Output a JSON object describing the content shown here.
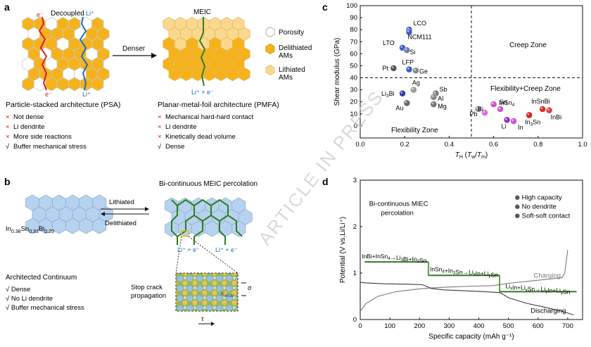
{
  "panel_labels": {
    "a": "a",
    "b": "b",
    "c": "c",
    "d": "d"
  },
  "colors": {
    "delithiated": "#f5b21b",
    "lithiated": "#fad98f",
    "porosity": "#ffffff",
    "blue_hex": "#b7d2ee",
    "green": "#2e7d1e",
    "red": "#d62020",
    "cross": "#d62020"
  },
  "panel_a": {
    "decoupled": "Decoupled",
    "e_minus": "e⁻",
    "li_plus": "Li⁺",
    "denser": "Denser",
    "meic": "MEIC",
    "li_e": "Li⁺ + e⁻",
    "legend": [
      {
        "label": "Porosity"
      },
      {
        "label": "Delithiated AMs"
      },
      {
        "label": "Lithiated AMs"
      }
    ],
    "psa_title": "Particle-stacked architecture (PSA)",
    "psa_list": [
      {
        "mark": "×",
        "text": "Not dense"
      },
      {
        "mark": "×",
        "text": "Li dendrite"
      },
      {
        "mark": "×",
        "text": "More side reactions"
      },
      {
        "mark": "√",
        "text": "Buffer mechanical stress"
      }
    ],
    "pmfa_title": "Planar-metal-foil architecture (PMFA)",
    "pmfa_list": [
      {
        "mark": "×",
        "text": "Mechanical hard-hard contact"
      },
      {
        "mark": "×",
        "text": "Li dendrite"
      },
      {
        "mark": "×",
        "text": "Kinetically dead volume"
      },
      {
        "mark": "√",
        "text": "Dense"
      }
    ]
  },
  "panel_b": {
    "title": "Bi-continuous MEIC percolation",
    "lithiated": "Lithiated",
    "delithiated": "Delithiated",
    "formula": "In0.38Sn0.33Bi0.29",
    "li_e_1": "Li⁺ + e⁻",
    "li_e_2": "Li⁺ + e⁻",
    "stop_crack": "Stop crack propagation",
    "sigma": "σ",
    "tau": "τ",
    "klocal": "K_local",
    "continuum_title": "Architected Continuum",
    "continuum_list": [
      "√ Dense",
      "√ No Li dendrite",
      "√ Buffer mechanical stress"
    ]
  },
  "watermark": "ARTICLE IN PRESS",
  "chart_data": [
    {
      "type": "scatter",
      "panel": "c",
      "xlabel": "T_H (T_w/T_m)",
      "ylabel": "Shear modulus (GPa)",
      "xlim": [
        0,
        1.0
      ],
      "ylim": [
        -10,
        100
      ],
      "xticks": [
        "0.0",
        "0.2",
        "0.4",
        "0.6",
        "0.8",
        "1.0"
      ],
      "yticks": [
        "0",
        "10",
        "20",
        "30",
        "40",
        "50",
        "60",
        "70",
        "80",
        "90",
        "100"
      ],
      "divider_x": 0.5,
      "divider_y": 40,
      "zones": [
        "Creep Zone",
        "Flexibility+Creep Zone",
        "Flexibility Zone"
      ],
      "points": [
        {
          "label": "LCO",
          "x": 0.22,
          "y": 80,
          "color": "#3b5bc4"
        },
        {
          "label": "NCM111",
          "x": 0.22,
          "y": 78,
          "color": "#3b5bc4"
        },
        {
          "label": "LTO",
          "x": 0.19,
          "y": 65,
          "color": "#3b5bc4"
        },
        {
          "label": "Si",
          "x": 0.21,
          "y": 63,
          "color": "#6c7fb0"
        },
        {
          "label": "LFP",
          "x": 0.22,
          "y": 47,
          "color": "#3b5bc4"
        },
        {
          "label": "Ge",
          "x": 0.25,
          "y": 46,
          "color": "#888888"
        },
        {
          "label": "Pt",
          "x": 0.15,
          "y": 48,
          "color": "#555555"
        },
        {
          "label": "Li3Bi",
          "x": 0.19,
          "y": 27,
          "color": "#2f3fa8"
        },
        {
          "label": "Ag",
          "x": 0.24,
          "y": 30,
          "color": "#999999"
        },
        {
          "label": "Au",
          "x": 0.21,
          "y": 19,
          "color": "#666666"
        },
        {
          "label": "Sb",
          "x": 0.34,
          "y": 27,
          "color": "#777777"
        },
        {
          "label": "Al",
          "x": 0.33,
          "y": 24,
          "color": "#888888"
        },
        {
          "label": "Mg",
          "x": 0.33,
          "y": 18,
          "color": "#777777"
        },
        {
          "label": "Pb",
          "x": 0.53,
          "y": 14,
          "color": "#999999"
        },
        {
          "label": "Bi",
          "x": 0.56,
          "y": 11,
          "color": "#e06ae0"
        },
        {
          "label": "Sn",
          "x": 0.6,
          "y": 18,
          "color": "#cc55cc"
        },
        {
          "label": "InSn4",
          "x": 0.63,
          "y": 14,
          "color": "#cc55cc"
        },
        {
          "label": "Li",
          "x": 0.66,
          "y": 5,
          "color": "#9a2ec0"
        },
        {
          "label": "In",
          "x": 0.69,
          "y": 4,
          "color": "#cc55cc"
        },
        {
          "label": "In3Sn",
          "x": 0.76,
          "y": 9,
          "color": "#d62020"
        },
        {
          "label": "InSnBi",
          "x": 0.82,
          "y": 14,
          "color": "#e02a2a"
        },
        {
          "label": "InBi",
          "x": 0.85,
          "y": 13,
          "color": "#e04040"
        }
      ]
    },
    {
      "type": "line",
      "panel": "d",
      "xlabel": "Specific capacity (mAh g⁻¹)",
      "ylabel": "Potential (V vs.Li/Li⁺)",
      "xlim": [
        0,
        750
      ],
      "ylim": [
        0,
        3
      ],
      "xticks": [
        "0",
        "100",
        "200",
        "300",
        "400",
        "500",
        "600",
        "700"
      ],
      "yticks": [
        "0",
        "1",
        "2",
        "3"
      ],
      "series": [
        {
          "name": "Charging",
          "x": [
            0,
            20,
            60,
            120,
            200,
            240,
            300,
            380,
            450,
            480,
            500,
            560,
            620,
            680,
            690,
            700
          ],
          "y": [
            0.18,
            0.35,
            0.5,
            0.6,
            0.66,
            0.68,
            0.7,
            0.72,
            0.73,
            0.76,
            0.78,
            0.82,
            0.86,
            0.9,
            1.0,
            1.5
          ]
        },
        {
          "name": "Discharging",
          "x": [
            0,
            20,
            80,
            160,
            210,
            240,
            280,
            350,
            420,
            470,
            480,
            500,
            560,
            620,
            680,
            720
          ],
          "y": [
            0.8,
            0.79,
            0.77,
            0.76,
            0.75,
            0.67,
            0.64,
            0.62,
            0.6,
            0.58,
            0.55,
            0.47,
            0.35,
            0.27,
            0.18,
            0.1
          ]
        }
      ],
      "plateaus": [
        {
          "label": "InBi+InSn4→Li3Bi+In3Sn",
          "x": [
            15,
            230
          ],
          "y": 1.24
        },
        {
          "label": "InSn4+In3Sn→LixIn+LiySn",
          "x": [
            230,
            470
          ],
          "y": 0.95
        },
        {
          "label": "LixIn+LiySn→LiyIn+LiySn",
          "x": [
            470,
            730
          ],
          "y": 0.6
        }
      ],
      "inset_title": "Bi-continuous MIEC percolation",
      "features": [
        "High capacity",
        "No dendrite",
        "Soft-soft contact"
      ],
      "curve_labels": [
        "Charging",
        "Discharging"
      ]
    }
  ]
}
